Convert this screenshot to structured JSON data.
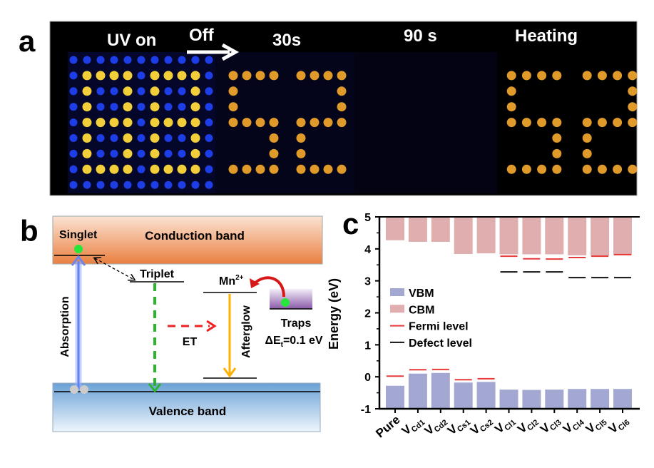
{
  "panel_labels": {
    "a": "a",
    "b": "b",
    "c": "c"
  },
  "panel_a": {
    "labels": {
      "uv_on": "UV on",
      "off": "Off",
      "t30": "30s",
      "t90": "90 s",
      "heating": "Heating"
    },
    "colors": {
      "blue_dot": "#1d3de6",
      "yellow_dot": "#f2cf3a",
      "orange_dot": "#e09a2a"
    }
  },
  "panel_b": {
    "conduction_band": "Conduction band",
    "valence_band": "Valence band",
    "singlet": "Singlet",
    "triplet": "Triplet",
    "mn": "Mn",
    "mn_sup": "2+",
    "absorption": "Absorption",
    "et": "ET",
    "afterglow": "Afterglow",
    "traps": "Traps",
    "delta_e_prefix": "ΔE",
    "delta_e_sub": "t",
    "delta_e_value": "=0.1 eV"
  },
  "chart_data": {
    "type": "bar",
    "title": "",
    "xlabel": "",
    "ylabel": "Energy (eV)",
    "ylim": [
      -1,
      5
    ],
    "yticks": [
      "-1",
      "0",
      "1",
      "2",
      "3",
      "4",
      "5"
    ],
    "categories": [
      {
        "main": "Pure",
        "sub": ""
      },
      {
        "main": "V",
        "sub": "Cd1"
      },
      {
        "main": "V",
        "sub": "Cd2"
      },
      {
        "main": "V",
        "sub": "Cs1"
      },
      {
        "main": "V",
        "sub": "Cs2"
      },
      {
        "main": "V",
        "sub": "Cl1"
      },
      {
        "main": "V",
        "sub": "Cl2"
      },
      {
        "main": "V",
        "sub": "Cl3"
      },
      {
        "main": "V",
        "sub": "Cl4"
      },
      {
        "main": "V",
        "sub": "Cl5"
      },
      {
        "main": "V",
        "sub": "Cl6"
      }
    ],
    "series": [
      {
        "name": "VBM",
        "color": "#a3a8d3",
        "values": [
          -0.28,
          0.1,
          0.12,
          -0.18,
          -0.16,
          -0.4,
          -0.41,
          -0.4,
          -0.38,
          -0.38,
          -0.38
        ]
      },
      {
        "name": "CBM",
        "color": "#e0aeae",
        "values": [
          4.27,
          4.22,
          4.22,
          3.84,
          3.86,
          3.83,
          3.83,
          3.83,
          3.8,
          3.78,
          3.8
        ]
      },
      {
        "name": "Fermi level",
        "color": "#e83a3a",
        "values": [
          0.02,
          0.22,
          0.23,
          -0.09,
          -0.06,
          3.77,
          3.69,
          3.68,
          3.73,
          3.77,
          3.82
        ]
      },
      {
        "name": "Defect level",
        "color": "#111111",
        "values": [
          null,
          null,
          null,
          null,
          null,
          3.28,
          3.28,
          3.28,
          3.1,
          3.1,
          3.1
        ]
      }
    ],
    "legend_position": "center-left"
  }
}
